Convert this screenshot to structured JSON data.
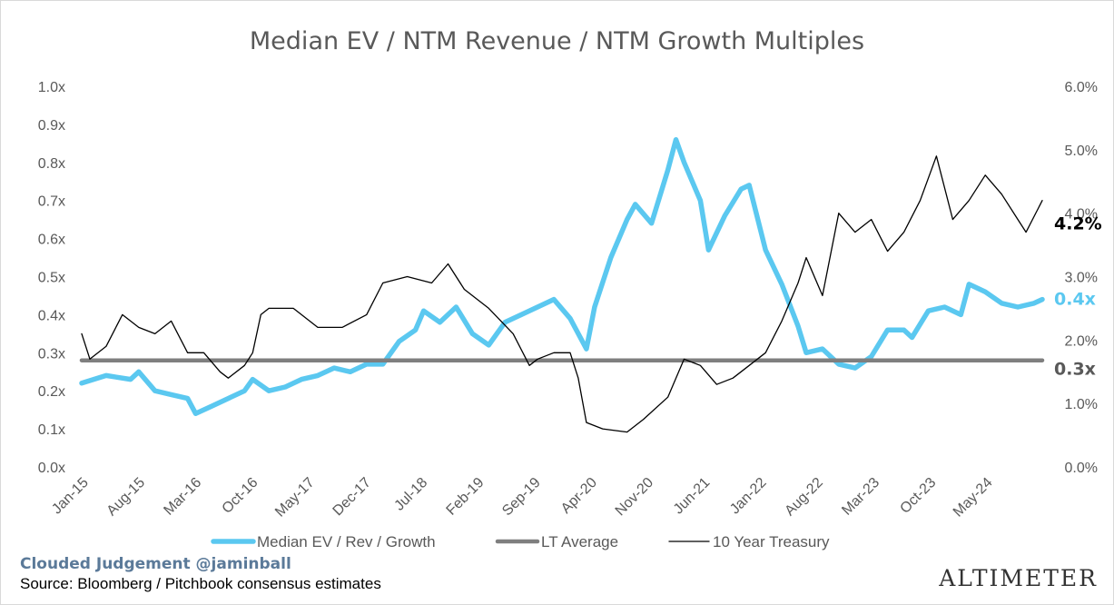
{
  "chart_data": {
    "type": "line",
    "title": "Median EV / NTM Revenue / NTM Growth Multiples",
    "x_tick_labels": [
      "Jan-15",
      "Aug-15",
      "Mar-16",
      "Oct-16",
      "May-17",
      "Dec-17",
      "Jul-18",
      "Feb-19",
      "Sep-19",
      "Apr-20",
      "Nov-20",
      "Jun-21",
      "Jan-22",
      "Aug-22",
      "Mar-23",
      "Oct-23",
      "May-24"
    ],
    "x_range": [
      "2015-01",
      "2024-11"
    ],
    "y_left": {
      "ticks": [
        "0.0x",
        "0.1x",
        "0.2x",
        "0.3x",
        "0.4x",
        "0.5x",
        "0.6x",
        "0.7x",
        "0.8x",
        "0.9x",
        "1.0x"
      ],
      "ylim": [
        0,
        1.0
      ]
    },
    "y_right": {
      "ticks": [
        "0.0%",
        "1.0%",
        "2.0%",
        "3.0%",
        "4.0%",
        "5.0%",
        "6.0%"
      ],
      "ylim": [
        0,
        6.0
      ]
    },
    "grid": false,
    "legend_position": "bottom",
    "series": [
      {
        "name": "Median EV / Rev / Growth",
        "axis": "left",
        "color": "#5bc8f0",
        "end_label": "0.4x",
        "points": [
          [
            "2015-01",
            0.22
          ],
          [
            "2015-04",
            0.24
          ],
          [
            "2015-07",
            0.23
          ],
          [
            "2015-08",
            0.25
          ],
          [
            "2015-10",
            0.2
          ],
          [
            "2015-12",
            0.19
          ],
          [
            "2016-02",
            0.18
          ],
          [
            "2016-03",
            0.14
          ],
          [
            "2016-05",
            0.16
          ],
          [
            "2016-07",
            0.18
          ],
          [
            "2016-09",
            0.2
          ],
          [
            "2016-10",
            0.23
          ],
          [
            "2016-12",
            0.2
          ],
          [
            "2017-02",
            0.21
          ],
          [
            "2017-04",
            0.23
          ],
          [
            "2017-06",
            0.24
          ],
          [
            "2017-08",
            0.26
          ],
          [
            "2017-10",
            0.25
          ],
          [
            "2017-12",
            0.27
          ],
          [
            "2018-02",
            0.27
          ],
          [
            "2018-04",
            0.33
          ],
          [
            "2018-06",
            0.36
          ],
          [
            "2018-07",
            0.41
          ],
          [
            "2018-09",
            0.38
          ],
          [
            "2018-11",
            0.42
          ],
          [
            "2019-01",
            0.35
          ],
          [
            "2019-03",
            0.32
          ],
          [
            "2019-05",
            0.38
          ],
          [
            "2019-07",
            0.4
          ],
          [
            "2019-09",
            0.42
          ],
          [
            "2019-11",
            0.44
          ],
          [
            "2020-01",
            0.39
          ],
          [
            "2020-03",
            0.31
          ],
          [
            "2020-04",
            0.42
          ],
          [
            "2020-06",
            0.55
          ],
          [
            "2020-08",
            0.65
          ],
          [
            "2020-09",
            0.69
          ],
          [
            "2020-11",
            0.64
          ],
          [
            "2021-01",
            0.78
          ],
          [
            "2021-02",
            0.86
          ],
          [
            "2021-03",
            0.8
          ],
          [
            "2021-05",
            0.7
          ],
          [
            "2021-06",
            0.57
          ],
          [
            "2021-08",
            0.66
          ],
          [
            "2021-10",
            0.73
          ],
          [
            "2021-11",
            0.74
          ],
          [
            "2022-01",
            0.57
          ],
          [
            "2022-03",
            0.48
          ],
          [
            "2022-05",
            0.37
          ],
          [
            "2022-06",
            0.3
          ],
          [
            "2022-08",
            0.31
          ],
          [
            "2022-10",
            0.27
          ],
          [
            "2022-12",
            0.26
          ],
          [
            "2023-02",
            0.29
          ],
          [
            "2023-04",
            0.36
          ],
          [
            "2023-06",
            0.36
          ],
          [
            "2023-07",
            0.34
          ],
          [
            "2023-09",
            0.41
          ],
          [
            "2023-11",
            0.42
          ],
          [
            "2024-01",
            0.4
          ],
          [
            "2024-02",
            0.48
          ],
          [
            "2024-04",
            0.46
          ],
          [
            "2024-06",
            0.43
          ],
          [
            "2024-08",
            0.42
          ],
          [
            "2024-10",
            0.43
          ],
          [
            "2024-11",
            0.44
          ]
        ]
      },
      {
        "name": "LT Average",
        "axis": "left",
        "color": "#7f7f7f",
        "end_label": "0.3x",
        "points": [
          [
            "2015-01",
            0.28
          ],
          [
            "2024-11",
            0.28
          ]
        ]
      },
      {
        "name": "10 Year Treasury",
        "axis": "right",
        "color": "#000000",
        "end_label": "4.2%",
        "points": [
          [
            "2015-01",
            2.1
          ],
          [
            "2015-02",
            1.7
          ],
          [
            "2015-04",
            1.9
          ],
          [
            "2015-06",
            2.4
          ],
          [
            "2015-08",
            2.2
          ],
          [
            "2015-10",
            2.1
          ],
          [
            "2015-12",
            2.3
          ],
          [
            "2016-02",
            1.8
          ],
          [
            "2016-04",
            1.8
          ],
          [
            "2016-06",
            1.5
          ],
          [
            "2016-07",
            1.4
          ],
          [
            "2016-09",
            1.6
          ],
          [
            "2016-10",
            1.8
          ],
          [
            "2016-11",
            2.4
          ],
          [
            "2016-12",
            2.5
          ],
          [
            "2017-03",
            2.5
          ],
          [
            "2017-06",
            2.2
          ],
          [
            "2017-09",
            2.2
          ],
          [
            "2017-12",
            2.4
          ],
          [
            "2018-02",
            2.9
          ],
          [
            "2018-05",
            3.0
          ],
          [
            "2018-08",
            2.9
          ],
          [
            "2018-10",
            3.2
          ],
          [
            "2018-12",
            2.8
          ],
          [
            "2019-03",
            2.5
          ],
          [
            "2019-06",
            2.1
          ],
          [
            "2019-08",
            1.6
          ],
          [
            "2019-09",
            1.7
          ],
          [
            "2019-11",
            1.8
          ],
          [
            "2020-01",
            1.8
          ],
          [
            "2020-02",
            1.4
          ],
          [
            "2020-03",
            0.7
          ],
          [
            "2020-05",
            0.6
          ],
          [
            "2020-08",
            0.55
          ],
          [
            "2020-10",
            0.75
          ],
          [
            "2021-01",
            1.1
          ],
          [
            "2021-03",
            1.7
          ],
          [
            "2021-05",
            1.6
          ],
          [
            "2021-07",
            1.3
          ],
          [
            "2021-09",
            1.4
          ],
          [
            "2021-11",
            1.6
          ],
          [
            "2022-01",
            1.8
          ],
          [
            "2022-03",
            2.3
          ],
          [
            "2022-05",
            2.9
          ],
          [
            "2022-06",
            3.3
          ],
          [
            "2022-08",
            2.7
          ],
          [
            "2022-10",
            4.0
          ],
          [
            "2022-12",
            3.7
          ],
          [
            "2023-02",
            3.9
          ],
          [
            "2023-04",
            3.4
          ],
          [
            "2023-06",
            3.7
          ],
          [
            "2023-08",
            4.2
          ],
          [
            "2023-10",
            4.9
          ],
          [
            "2023-12",
            3.9
          ],
          [
            "2024-02",
            4.2
          ],
          [
            "2024-04",
            4.6
          ],
          [
            "2024-06",
            4.3
          ],
          [
            "2024-08",
            3.9
          ],
          [
            "2024-09",
            3.7
          ],
          [
            "2024-11",
            4.2
          ]
        ]
      }
    ]
  },
  "footer": {
    "brand": "Clouded Judgement @jaminball",
    "source": "Source: Bloomberg / Pitchbook consensus estimates",
    "logo": "ALTIMETER"
  }
}
